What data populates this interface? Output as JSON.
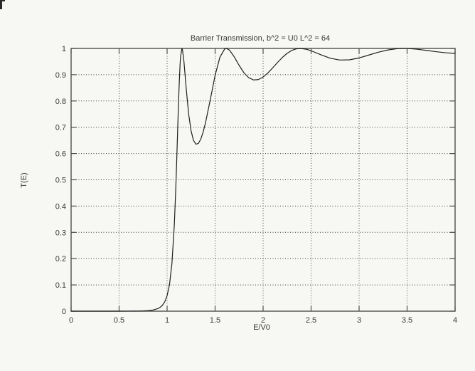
{
  "styles": {
    "page_bg": "#f7f7f4",
    "frame_color": "#4d4d4d",
    "grid_color": "#3c3c3c",
    "curve_color": "#1f1f1f",
    "text_color": "#3a3a3a"
  },
  "chart_data": {
    "type": "line",
    "title": "Barrier Transmission, b^2 = U0 L^2 = 64",
    "xlabel": "E/V0",
    "ylabel": "T(E)",
    "xlim": [
      0,
      4
    ],
    "ylim": [
      0,
      1
    ],
    "grid": true,
    "legend": "none",
    "x_tick_values": [
      0,
      0.5,
      1,
      1.5,
      2,
      2.5,
      3,
      3.5,
      4
    ],
    "x_tick_labels": [
      "0",
      "0.5",
      "1",
      "1.5",
      "2",
      "2.5",
      "3",
      "3.5",
      "4"
    ],
    "y_tick_values": [
      0,
      0.1,
      0.2,
      0.3,
      0.4,
      0.5,
      0.6,
      0.7,
      0.8,
      0.9,
      1
    ],
    "y_tick_labels": [
      "0",
      "0.1",
      "0.2",
      "0.3",
      "0.4",
      "0.5",
      "0.6",
      "0.7",
      "0.8",
      "0.9",
      "1"
    ],
    "series": [
      {
        "name": "T(E) barrier transmission",
        "points": [
          [
            0,
            0
          ],
          [
            0.3,
            0
          ],
          [
            0.5,
            0.0001
          ],
          [
            0.6,
            0.0002
          ],
          [
            0.65,
            0.0003
          ],
          [
            0.7,
            0.0005
          ],
          [
            0.75,
            0.001
          ],
          [
            0.8,
            0.002
          ],
          [
            0.85,
            0.0042
          ],
          [
            0.9,
            0.0092
          ],
          [
            0.925,
            0.014
          ],
          [
            0.95,
            0.022
          ],
          [
            0.975,
            0.0354
          ],
          [
            1,
            0.0588
          ],
          [
            1.025,
            0.1013
          ],
          [
            1.05,
            0.1806
          ],
          [
            1.075,
            0.3277
          ],
          [
            1.09,
            0.4624
          ],
          [
            1.1,
            0.5717
          ],
          [
            1.115,
            0.7481
          ],
          [
            1.125,
            0.8553
          ],
          [
            1.135,
            0.9383
          ],
          [
            1.14,
            0.9669
          ],
          [
            1.154,
            1
          ],
          [
            1.16,
            0.9954
          ],
          [
            1.175,
            0.9518
          ],
          [
            1.2,
            0.8431
          ],
          [
            1.225,
            0.7489
          ],
          [
            1.25,
            0.6858
          ],
          [
            1.275,
            0.6499
          ],
          [
            1.3,
            0.6356
          ],
          [
            1.325,
            0.638
          ],
          [
            1.35,
            0.6541
          ],
          [
            1.375,
            0.6811
          ],
          [
            1.4,
            0.7172
          ],
          [
            1.45,
            0.8052
          ],
          [
            1.5,
            0.8973
          ],
          [
            1.55,
            0.9666
          ],
          [
            1.6,
            0.9981
          ],
          [
            1.617,
            1
          ],
          [
            1.65,
            0.9936
          ],
          [
            1.7,
            0.9677
          ],
          [
            1.75,
            0.9356
          ],
          [
            1.8,
            0.9075
          ],
          [
            1.85,
            0.8886
          ],
          [
            1.9,
            0.8801
          ],
          [
            1.95,
            0.8814
          ],
          [
            2,
            0.891
          ],
          [
            2.05,
            0.9067
          ],
          [
            2.1,
            0.9261
          ],
          [
            2.15,
            0.9465
          ],
          [
            2.2,
            0.9655
          ],
          [
            2.25,
            0.9814
          ],
          [
            2.3,
            0.9926
          ],
          [
            2.35,
            0.9987
          ],
          [
            2.388,
            1
          ],
          [
            2.45,
            0.997
          ],
          [
            2.5,
            0.9912
          ],
          [
            2.6,
            0.976
          ],
          [
            2.7,
            0.9626
          ],
          [
            2.8,
            0.9558
          ],
          [
            2.9,
            0.9566
          ],
          [
            3,
            0.9638
          ],
          [
            3.1,
            0.9746
          ],
          [
            3.2,
            0.9855
          ],
          [
            3.3,
            0.9942
          ],
          [
            3.4,
            0.9991
          ],
          [
            3.467,
            1
          ],
          [
            3.5,
            0.9998
          ],
          [
            3.6,
            0.9971
          ],
          [
            3.7,
            0.9925
          ],
          [
            3.8,
            0.9876
          ],
          [
            3.9,
            0.9835
          ],
          [
            4,
            0.9811
          ]
        ]
      }
    ]
  }
}
